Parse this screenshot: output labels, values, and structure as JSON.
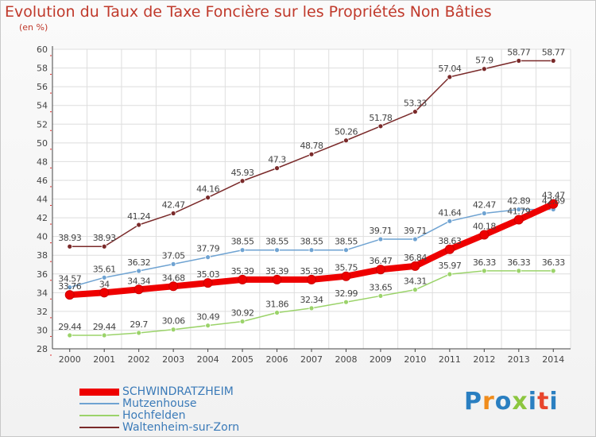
{
  "title": "Evolution du Taux de Taxe Foncière sur les Propriétés Non Bâties",
  "subtitle": "(en %)",
  "logo": {
    "text": "Proxiti",
    "colors": [
      "#2a7fc1",
      "#f08c1c",
      "#2a7fc1",
      "#8cc63f",
      "#2a7fc1",
      "#e8452c",
      "#2a7fc1"
    ]
  },
  "chart_data": {
    "type": "line",
    "title": "Evolution du Taux de Taxe Foncière sur les Propriétés Non Bâties",
    "ylabel": "(en %)",
    "xlabel": "",
    "x": [
      "2000",
      "2001",
      "2002",
      "2003",
      "2004",
      "2005",
      "2006",
      "2007",
      "2008",
      "2009",
      "2010",
      "2011",
      "2012",
      "2013",
      "2014"
    ],
    "ylim": [
      28,
      60
    ],
    "yticks": [
      28,
      30,
      32,
      34,
      36,
      38,
      40,
      42,
      44,
      46,
      48,
      50,
      52,
      54,
      56,
      58,
      60
    ],
    "grid": true,
    "legend_position": "bottom-left",
    "series": [
      {
        "name": "SCHWINDRATZHEIM",
        "color": "#ee0000",
        "width": 8,
        "values": [
          33.76,
          34,
          34.34,
          34.68,
          35.03,
          35.39,
          35.39,
          35.39,
          35.75,
          36.47,
          36.84,
          38.63,
          40.18,
          41.79,
          43.47
        ],
        "labels": [
          "33.76",
          "34",
          "34.34",
          "34.68",
          "35.03",
          "35.39",
          "35.39",
          "35.39",
          "35.75",
          "36.47",
          "36.84",
          "38.63",
          "40.18",
          "41.79",
          "43.47"
        ]
      },
      {
        "name": "Mutzenhouse",
        "color": "#6fa3d2",
        "width": 1.5,
        "values": [
          34.57,
          35.61,
          36.32,
          37.05,
          37.79,
          38.55,
          38.55,
          38.55,
          38.55,
          39.71,
          39.71,
          41.64,
          42.47,
          42.89,
          42.89
        ],
        "labels": [
          "34.57",
          "35.61",
          "36.32",
          "37.05",
          "37.79",
          "38.55",
          "38.55",
          "38.55",
          "38.55",
          "39.71",
          "39.71",
          "41.64",
          "42.47",
          "42.89",
          "42.89"
        ]
      },
      {
        "name": "Hochfelden",
        "color": "#9bd36a",
        "width": 1.5,
        "values": [
          29.44,
          29.44,
          29.7,
          30.06,
          30.49,
          30.92,
          31.86,
          32.34,
          32.99,
          33.65,
          34.31,
          35.97,
          36.33,
          36.33,
          36.33
        ],
        "labels": [
          "29.44",
          "29.44",
          "29.7",
          "30.06",
          "30.49",
          "30.92",
          "31.86",
          "32.34",
          "32.99",
          "33.65",
          "34.31",
          "35.97",
          "36.33",
          "36.33",
          "36.33"
        ]
      },
      {
        "name": "Waltenheim-sur-Zorn",
        "color": "#7a2a2a",
        "width": 1.5,
        "values": [
          38.93,
          38.93,
          41.24,
          42.47,
          44.16,
          45.93,
          47.3,
          48.78,
          50.26,
          51.78,
          53.33,
          57.04,
          57.9,
          58.77,
          58.77
        ],
        "labels": [
          "38.93",
          "38.93",
          "41.24",
          "42.47",
          "44.16",
          "45.93",
          "47.3",
          "48.78",
          "50.26",
          "51.78",
          "53.33",
          "57.04",
          "57.9",
          "58.77",
          "58.77"
        ]
      }
    ]
  }
}
